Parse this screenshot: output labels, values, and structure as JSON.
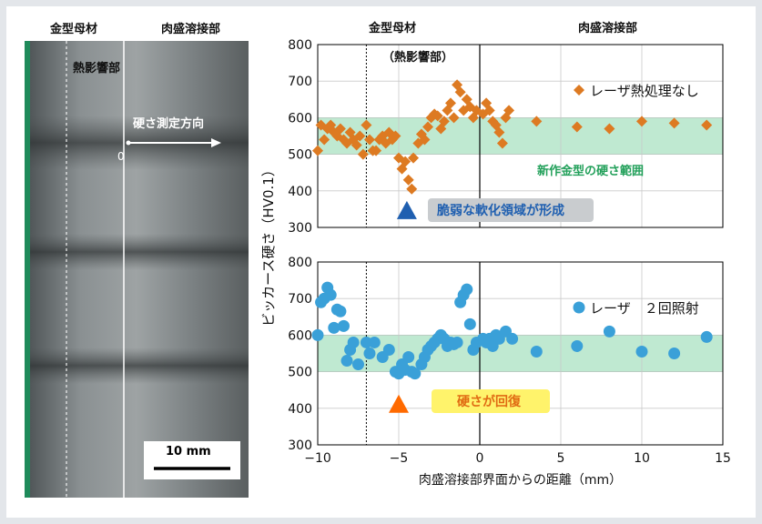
{
  "photo": {
    "label_base_metal": "金型母材",
    "label_overlay_weld": "肉盛溶接部",
    "label_haz": "熱影響部",
    "label_direction": "硬さ測定方向",
    "label_zero": "0",
    "scale_bar_label": "10 mm"
  },
  "chart_data": [
    {
      "type": "scatter",
      "xlim": [
        -10,
        15
      ],
      "ylim": [
        300,
        800
      ],
      "yticks": [
        300,
        400,
        500,
        600,
        700,
        800
      ],
      "grid": true,
      "band": [
        500,
        600
      ],
      "band_label": "新作金型の硬さ範囲",
      "header_left": "金型母材",
      "header_right": "肉盛溶接部",
      "haz_label": "（熱影響部）",
      "boundary_x": -7,
      "legend_position": "top-right",
      "series": [
        {
          "name": "レーザ熱処理なし",
          "marker": "diamond",
          "color": "#dd7a22",
          "points": [
            [
              -10,
              510
            ],
            [
              -9.8,
              580
            ],
            [
              -9.6,
              540
            ],
            [
              -9.4,
              570
            ],
            [
              -9.2,
              580
            ],
            [
              -9,
              560
            ],
            [
              -8.8,
              550
            ],
            [
              -8.6,
              570
            ],
            [
              -8.4,
              540
            ],
            [
              -8.2,
              530
            ],
            [
              -8,
              560
            ],
            [
              -7.8,
              540
            ],
            [
              -7.6,
              525
            ],
            [
              -7.4,
              550
            ],
            [
              -7.2,
              500
            ],
            [
              -7,
              580
            ],
            [
              -6.8,
              540
            ],
            [
              -6.6,
              510
            ],
            [
              -6.4,
              510
            ],
            [
              -6.2,
              540
            ],
            [
              -6,
              550
            ],
            [
              -5.8,
              530
            ],
            [
              -5.6,
              560
            ],
            [
              -5.4,
              540
            ],
            [
              -5.2,
              550
            ],
            [
              -5,
              490
            ],
            [
              -4.8,
              460
            ],
            [
              -4.6,
              480
            ],
            [
              -4.4,
              430
            ],
            [
              -4.2,
              405
            ],
            [
              -4.1,
              490
            ],
            [
              -3.8,
              530
            ],
            [
              -3.6,
              555
            ],
            [
              -3.4,
              540
            ],
            [
              -3.2,
              575
            ],
            [
              -3,
              600
            ],
            [
              -2.8,
              610
            ],
            [
              -2.6,
              605
            ],
            [
              -2.4,
              570
            ],
            [
              -2.2,
              590
            ],
            [
              -2,
              620
            ],
            [
              -1.8,
              640
            ],
            [
              -1.6,
              600
            ],
            [
              -1.4,
              690
            ],
            [
              -1.2,
              670
            ],
            [
              -1,
              620
            ],
            [
              -0.8,
              650
            ],
            [
              -0.6,
              630
            ],
            [
              -0.4,
              600
            ],
            [
              -0.2,
              620
            ],
            [
              0.2,
              610
            ],
            [
              0.4,
              640
            ],
            [
              0.6,
              620
            ],
            [
              0.8,
              590
            ],
            [
              1,
              580
            ],
            [
              1.2,
              560
            ],
            [
              1.4,
              530
            ],
            [
              1.6,
              600
            ],
            [
              1.8,
              620
            ],
            [
              3.5,
              590
            ],
            [
              6,
              575
            ],
            [
              8,
              570
            ],
            [
              10,
              590
            ],
            [
              12,
              585
            ],
            [
              14,
              580
            ]
          ]
        }
      ],
      "callout": {
        "text": "脆弱な軟化領域が形成",
        "marker_x": -4.5,
        "marker_y": 345,
        "marker_color": "#1f5fb0"
      }
    },
    {
      "type": "scatter",
      "xlim": [
        -10,
        15
      ],
      "ylim": [
        300,
        800
      ],
      "yticks": [
        300,
        400,
        500,
        600,
        700,
        800
      ],
      "xticks": [
        -10,
        -5,
        0,
        5,
        10,
        15
      ],
      "xtick_labels": [
        "−10",
        "−5",
        "0",
        "5",
        "10",
        "15"
      ],
      "grid": true,
      "band": [
        500,
        600
      ],
      "boundary_x": -7,
      "legend_position": "top-right",
      "xlabel": "肉盛溶接部界面からの距離（mm）",
      "ylabel": "ビッカース硬さ（HV0.1）",
      "series": [
        {
          "name": "レーザ　２回照射",
          "marker": "circle",
          "color": "#3aa0d8",
          "points": [
            [
              -10,
              600
            ],
            [
              -9.8,
              690
            ],
            [
              -9.6,
              700
            ],
            [
              -9.4,
              730
            ],
            [
              -9.2,
              710
            ],
            [
              -9,
              620
            ],
            [
              -8.8,
              670
            ],
            [
              -8.6,
              665
            ],
            [
              -8.4,
              625
            ],
            [
              -8.2,
              530
            ],
            [
              -8,
              560
            ],
            [
              -7.8,
              580
            ],
            [
              -7.5,
              520
            ],
            [
              -7,
              580
            ],
            [
              -6.8,
              550
            ],
            [
              -6.5,
              580
            ],
            [
              -6,
              540
            ],
            [
              -5.6,
              560
            ],
            [
              -5.2,
              500
            ],
            [
              -5,
              495
            ],
            [
              -4.8,
              520
            ],
            [
              -4.6,
              505
            ],
            [
              -4.4,
              540
            ],
            [
              -4.2,
              500
            ],
            [
              -4,
              495
            ],
            [
              -3.6,
              520
            ],
            [
              -3.4,
              540
            ],
            [
              -3.2,
              560
            ],
            [
              -3,
              570
            ],
            [
              -2.8,
              580
            ],
            [
              -2.6,
              590
            ],
            [
              -2.4,
              600
            ],
            [
              -2.2,
              590
            ],
            [
              -2,
              570
            ],
            [
              -1.8,
              580
            ],
            [
              -1.6,
              575
            ],
            [
              -1.4,
              580
            ],
            [
              -1.2,
              690
            ],
            [
              -1.0,
              710
            ],
            [
              -0.8,
              725
            ],
            [
              -0.6,
              630
            ],
            [
              -0.4,
              560
            ],
            [
              -0.2,
              580
            ],
            [
              0.2,
              590
            ],
            [
              0.4,
              580
            ],
            [
              0.6,
              590
            ],
            [
              0.8,
              570
            ],
            [
              1,
              600
            ],
            [
              1.2,
              590
            ],
            [
              1.6,
              610
            ],
            [
              2,
              590
            ],
            [
              3.5,
              555
            ],
            [
              6,
              570
            ],
            [
              8,
              610
            ],
            [
              10,
              555
            ],
            [
              12,
              550
            ],
            [
              14,
              595
            ]
          ]
        }
      ],
      "callout": {
        "text": "硬さが回復",
        "marker_x": -5,
        "marker_y": 410,
        "marker_color": "#ff6a00"
      }
    }
  ]
}
